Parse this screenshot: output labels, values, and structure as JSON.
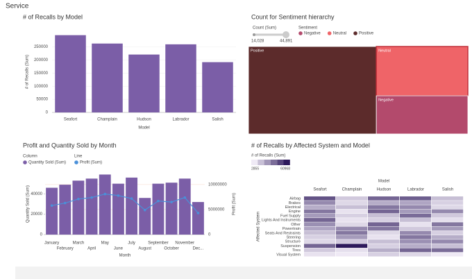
{
  "header": {
    "title": "Service"
  },
  "chart_data": [
    {
      "type": "bar",
      "title": "# of Recalls by Model",
      "x_label": "Model",
      "y_label": "# of Recalls (Sum)",
      "categories": [
        "Seafort",
        "Champlain",
        "Hudson",
        "Labrador",
        "Salish"
      ],
      "values": [
        295000,
        263000,
        221000,
        260000,
        192000
      ],
      "color": "#7b5ea7",
      "ylim": [
        0,
        310000
      ],
      "yticks": [
        0,
        50000,
        100000,
        150000,
        200000,
        250000
      ]
    },
    {
      "type": "treemap",
      "title": "Count for Sentiment hierarchy",
      "size_legend": {
        "title": "Count (Sum)",
        "min": {
          "value": 14028,
          "label": "14,028"
        },
        "max": {
          "value": 44891,
          "label": "44,891"
        }
      },
      "legend_title": "Sentiment",
      "categories": [
        "Positive",
        "Neutral",
        "Negative"
      ],
      "values": [
        44891,
        18100,
        14028
      ],
      "colors": [
        "#5c2b2b",
        "#ef6468",
        "#b34a6c"
      ],
      "legend_order": [
        2,
        1,
        0
      ]
    },
    {
      "type": "combo",
      "title": "Profit and Quantity Sold by Month",
      "x_label": "Month",
      "y_label": "Quantity Sold (Sum)",
      "y2_label": "Profit (Sum)",
      "categories": [
        "January",
        "February",
        "March",
        "April",
        "May",
        "June",
        "July",
        "August",
        "September",
        "October",
        "November",
        "Dec..."
      ],
      "series": [
        {
          "name": "Quantity Sold (Sum)",
          "legend_group": "Column",
          "kind": "bar",
          "color": "#7b5ea7",
          "values": [
            46000,
            49000,
            53000,
            55000,
            59000,
            50000,
            56000,
            36000,
            50000,
            51000,
            55000,
            32000
          ]
        },
        {
          "name": "Profit (Sum)",
          "legend_group": "Line",
          "kind": "line",
          "axis": "y2",
          "color": "#4a90d9",
          "values": [
            5800000,
            6300000,
            7100000,
            7400000,
            8100000,
            7800000,
            7200000,
            4900000,
            6700000,
            6500000,
            7400000,
            4300000
          ]
        }
      ],
      "ylim": [
        0,
        60000
      ],
      "yticks": [
        0,
        20000,
        40000
      ],
      "y2lim": [
        0,
        12200000
      ],
      "y2ticks": [
        0,
        5000000,
        10000000
      ]
    },
    {
      "type": "heatmap",
      "title": "# of Recalls by Affected System and Model",
      "x_label": "Model",
      "y_label": "Affected System",
      "legend_title": "# of Recalls (Sum)",
      "legend_min": 2855,
      "legend_max": 60968,
      "color_range": [
        "#efeaf5",
        "#2e1a5c"
      ],
      "columns": [
        "Seafort",
        "Champlain",
        "Hudson",
        "Labrador",
        "Salish"
      ],
      "rows": [
        "Airbag",
        "Brakes",
        "Electrical",
        "Engine",
        "Fuel Supply",
        "Lights And Instruments",
        "Other",
        "Powertrain",
        "Seats And Restraints",
        "Steering",
        "Structure",
        "Suspension",
        "Tires",
        "Visual System"
      ],
      "values": [
        [
          45000,
          12000,
          40000,
          42000,
          15000
        ],
        [
          30000,
          8000,
          20000,
          22000,
          10000
        ],
        [
          20000,
          15000,
          35000,
          30000,
          8000
        ],
        [
          35000,
          5000,
          40000,
          25000,
          30000
        ],
        [
          25000,
          10000,
          15000,
          38000,
          12000
        ],
        [
          40000,
          5000,
          10000,
          15000,
          6000
        ],
        [
          28000,
          8000,
          40000,
          5000,
          35000
        ],
        [
          22000,
          30000,
          35000,
          12000,
          25000
        ],
        [
          15000,
          35000,
          8000,
          30000,
          10000
        ],
        [
          10000,
          25000,
          5000,
          35000,
          20000
        ],
        [
          8000,
          12000,
          15000,
          28000,
          30000
        ],
        [
          40000,
          60968,
          10000,
          20000,
          15000
        ],
        [
          12000,
          6000,
          20000,
          40000,
          38000
        ],
        [
          5000,
          3000,
          10000,
          8000,
          2855
        ]
      ]
    }
  ]
}
